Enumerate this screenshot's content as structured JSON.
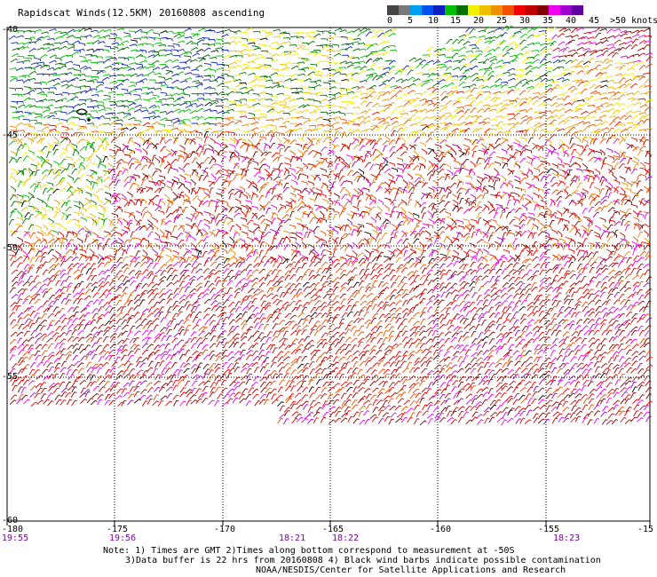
{
  "title": "Rapidscat Winds(12.5KM) 20160808 ascending",
  "legend": {
    "colors": [
      "#444444",
      "#777777",
      "#00a0f0",
      "#0050f0",
      "#1020c0",
      "#00c000",
      "#007000",
      "#f0f000",
      "#f0c000",
      "#f09000",
      "#f05000",
      "#f00000",
      "#c00000",
      "#800000",
      "#f000f0",
      "#a000d0",
      "#6000a0"
    ],
    "labels": [
      "0",
      "5",
      "10",
      "15",
      "20",
      "25",
      "30",
      "35",
      "40",
      "45",
      ">50 knots"
    ]
  },
  "axes": {
    "lon_ticks": [
      "-180",
      "-175",
      "-170",
      "-165",
      "-160",
      "-155",
      "-15"
    ],
    "lat_ticks": [
      "-40",
      "-45",
      "-50",
      "-55",
      "-60"
    ]
  },
  "times": [
    "19:55",
    "19:56",
    "18:21",
    "18:22",
    "18:23"
  ],
  "notes": {
    "line1": "Note: 1) Times are GMT 2)Times along bottom correspond to measurement at -50S",
    "line2": "3)Data buffer is 22 hrs from 20160808 4) Black wind barbs indicate possible contamination",
    "credit": "NOAA/NESDIS/Center for Satellite Applications and Research"
  }
}
